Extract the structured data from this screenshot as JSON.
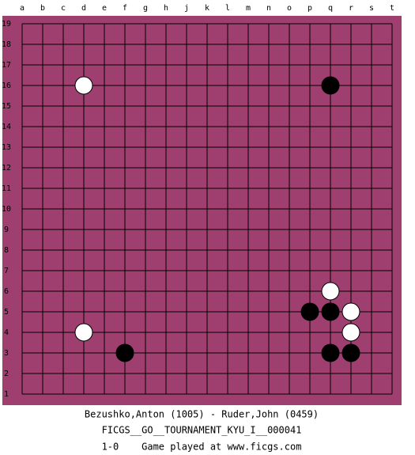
{
  "board": {
    "columns": [
      "a",
      "b",
      "c",
      "d",
      "e",
      "f",
      "g",
      "h",
      "j",
      "k",
      "l",
      "m",
      "n",
      "o",
      "p",
      "q",
      "r",
      "s",
      "t"
    ],
    "rows": [
      19,
      18,
      17,
      16,
      15,
      14,
      13,
      12,
      11,
      10,
      9,
      8,
      7,
      6,
      5,
      4,
      3,
      2,
      1
    ],
    "stones": [
      {
        "col": "d",
        "row": 16,
        "color": "white"
      },
      {
        "col": "q",
        "row": 16,
        "color": "black"
      },
      {
        "col": "q",
        "row": 6,
        "color": "white"
      },
      {
        "col": "p",
        "row": 5,
        "color": "black"
      },
      {
        "col": "q",
        "row": 5,
        "color": "black"
      },
      {
        "col": "r",
        "row": 5,
        "color": "white"
      },
      {
        "col": "d",
        "row": 4,
        "color": "white"
      },
      {
        "col": "r",
        "row": 4,
        "color": "white"
      },
      {
        "col": "f",
        "row": 3,
        "color": "black"
      },
      {
        "col": "q",
        "row": 3,
        "color": "black"
      },
      {
        "col": "r",
        "row": 3,
        "color": "black"
      }
    ]
  },
  "footer": {
    "players": "Bezushko,Anton (1005) - Ruder,John (0459)",
    "tournament": "FICGS__GO__TOURNAMENT_KYU_I__000041",
    "result": "1-0    Game played at www.ficgs.com"
  }
}
